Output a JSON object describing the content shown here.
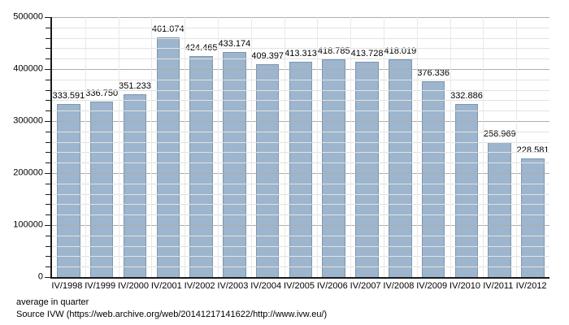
{
  "chart_data": {
    "type": "bar",
    "title": "",
    "xlabel": "",
    "ylabel": "",
    "categories": [
      "IV/1998",
      "IV/1999",
      "IV/2000",
      "IV/2001",
      "IV/2002",
      "IV/2003",
      "IV/2004",
      "IV/2005",
      "IV/2006",
      "IV/2007",
      "IV/2008",
      "IV/2009",
      "IV/2010",
      "IV/2011",
      "IV/2012"
    ],
    "values": [
      333591,
      336750,
      351233,
      461074,
      424465,
      433174,
      409397,
      413313,
      418785,
      413728,
      418019,
      376336,
      332886,
      258969,
      228581
    ],
    "value_labels": [
      "333.591",
      "336.750",
      "351.233",
      "461.074",
      "424.465",
      "433.174",
      "409.397",
      "413.313",
      "418.785",
      "413.728",
      "418.019",
      "376.336",
      "332.886",
      "258.969",
      "228.581"
    ],
    "ylim": [
      0,
      500000
    ],
    "y_major_step": 100000,
    "y_minor_step": 20000,
    "y_tick_labels": [
      "0",
      "100000",
      "200000",
      "300000",
      "400000",
      "500000"
    ],
    "grid": "horizontal major+minor, faint vertical lines at category boundaries",
    "legend_position": "none",
    "colors": {
      "bar_fill": "#9db5cd",
      "bar_border": "#7d96af",
      "grid_major": "#adadad",
      "grid_minor": "#e2e2e2",
      "grid_vertical": "#e9e9e9",
      "axis": "#1a1a1a",
      "text": "#000000",
      "background": "#ffffff"
    }
  },
  "footer": {
    "line1": "average in quarter",
    "line2": "Source IVW (https://web.archive.org/web/20141217141622/http://www.ivw.eu/)"
  }
}
